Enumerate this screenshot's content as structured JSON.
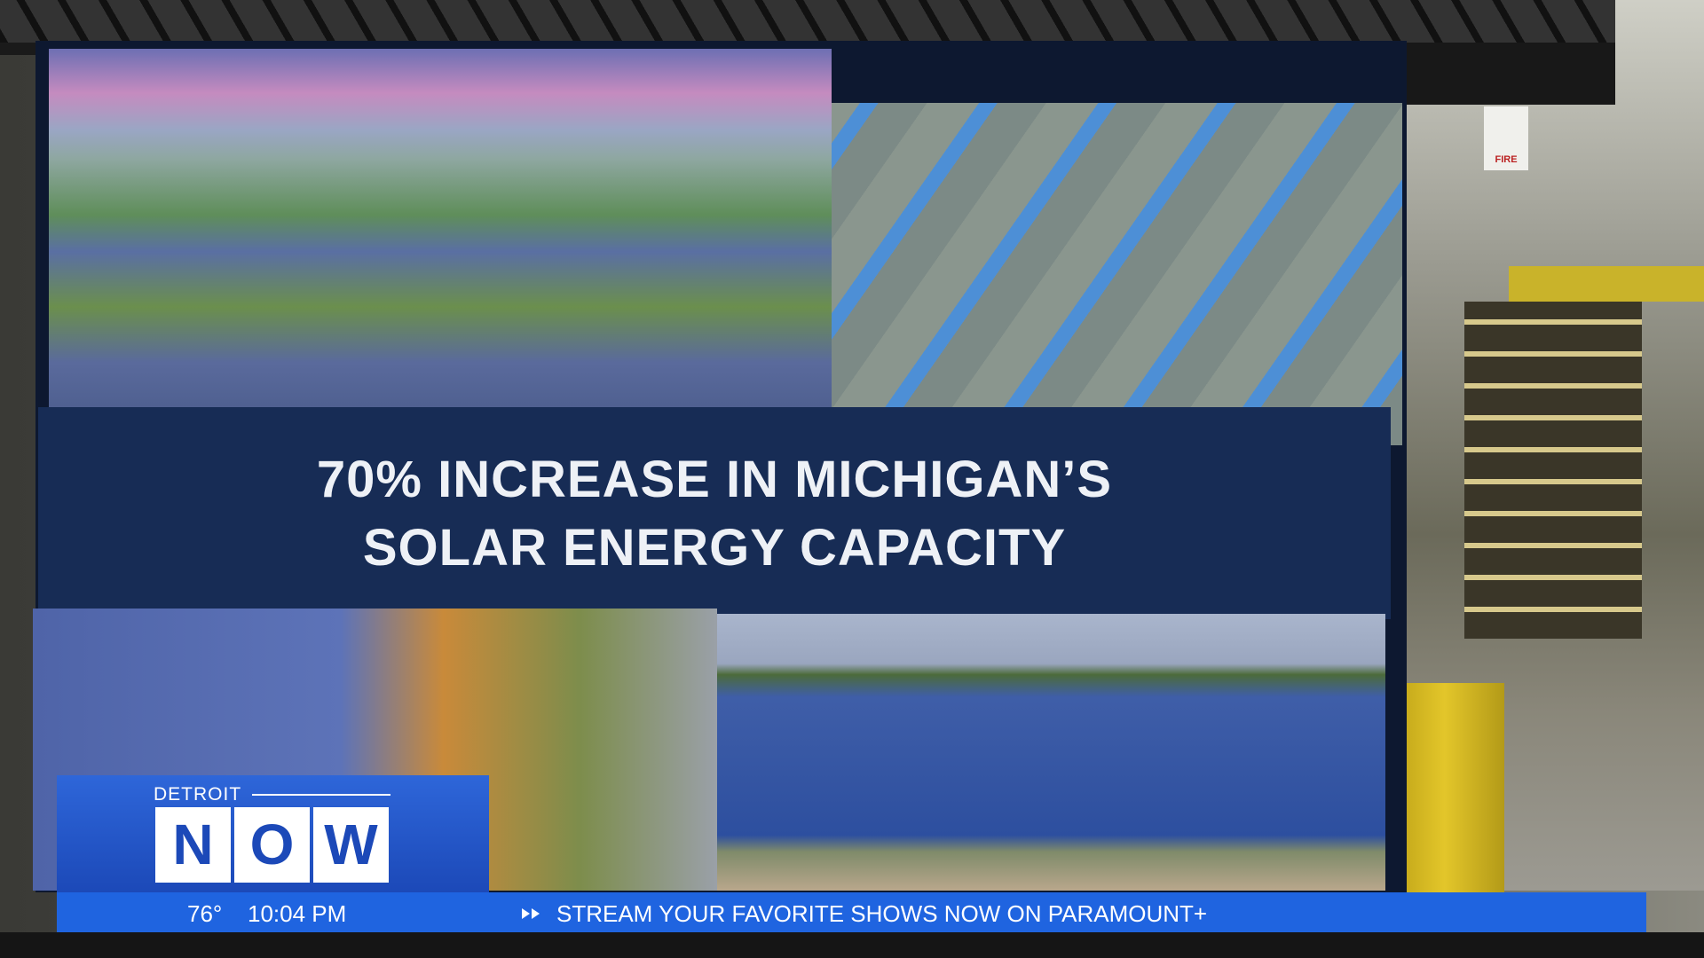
{
  "screen": {
    "headline": [
      "70% INCREASE IN MICHIGAN’S",
      "SOLAR ENERGY CAPACITY"
    ]
  },
  "logo": {
    "city": "DETROIT",
    "letters": [
      "N",
      "O",
      "W"
    ]
  },
  "ticker": {
    "temperature": "76°",
    "time": "10:04 PM",
    "message": "STREAM YOUR FAVORITE SHOWS NOW ON PARAMOUNT+"
  },
  "background": {
    "sign": "FIRE"
  }
}
